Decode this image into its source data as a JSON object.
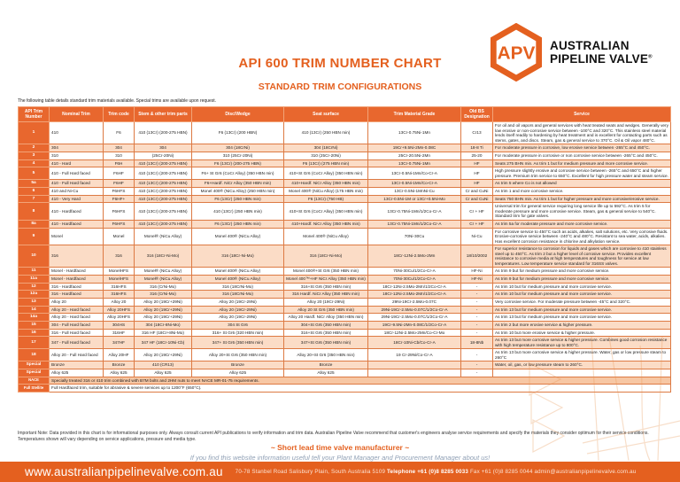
{
  "colors": {
    "accent": "#e4601f",
    "header_orange": "#e8672e",
    "row_alt": "#fbdcc6",
    "nace_bg": "#f7c7a4"
  },
  "logo": {
    "abbr": "APV",
    "line1": "AUSTRALIAN",
    "line2": "PIPELINE VALVE",
    "registered": "®"
  },
  "title": "API 600 TRIM NUMBER CHART",
  "subtitle": "STANDARD TRIM CONFIGURATIONS",
  "intro_note": "The following table details standard trim materials available. Special trims are available upon request.",
  "table": {
    "headers": [
      "API Trim Number",
      "Nominal Trim",
      "Trim code",
      "Stem & other trim parts",
      "Disc/Wedge",
      "Seat surface",
      "Trim Material Grade",
      "Old BS Designation",
      "Service"
    ],
    "rows": [
      [
        "1",
        "410",
        "F6",
        "410 (13Cr) (200-275 HBN)",
        "F6 (13Cr) (200 HBN)",
        "410 (13Cr) (250 HBN min)",
        "13Cr-0.75Ni-1Mn",
        "Cr13",
        "For oil and oil vapors and general services with heat treated seats and wedges. Generally very low erosive or non-corrosive service between -100°C and 320°C. This stainless steel material lends itself readily to hardening by heat treatment and is excellent for contacting parts such as stems, gates, and discs. Steam, gas & general service to 370°C. Oil & Oil vapor 480°C."
      ],
      [
        "2",
        "304",
        "304",
        "304",
        "304 (18CrNi)",
        "304 (18CrNi)",
        "19Cr+9.5Ni-2Mn-0.08C",
        "18-8 Ti",
        "For moderate pressure in corrosive, low erosive service between -265°C and 450°C."
      ],
      [
        "3",
        "310",
        "310",
        "(25Cr-20Ni)",
        "310 (25Cr-20Ni)",
        "310 (25Cr-20Ni)",
        "25Cr-20.5Ni-2Mn",
        "25-20",
        "For moderate pressure in corrosive or non corrosive service between -265°C and 450°C."
      ],
      [
        "4",
        "410 - Hard",
        "F6H",
        "410 (13Cr) (200-275 HBN)",
        "F6 (13Cr) (200-275 HBN)",
        "F6 (13Cr) (275 HBN min)",
        "13Cr-0.75Ni-1Mn",
        "HF",
        "Seats 275 BHN min. As trim 1 but for medium pressure and more corrosive service."
      ],
      [
        "5",
        "410 - Full Hard faced",
        "F6HF",
        "410 (13Cr) (200-275 HBN)",
        "F6+ St Gr6 (CoCr Alloy) (350 HBN min)",
        "410+St Gr6 (CoCr Alloy) (350 HBN min)",
        "13Cr-0.5Ni-1Mn/Co-Cr-A",
        "HF",
        "High pressure slightly erosive and corrosive service between -265°C and 650°C and higher pressure. Premium trim service to 650°C. Excellent for high pressure water and steam service."
      ],
      [
        "5a",
        "410 - Full Hard faced",
        "F6HF",
        "410 (13Cr) (200-275 HBN)",
        "F6+Hardf. NiCr Alloy (350 HBN min)",
        "410+Hardf. NiCr Alloy (350 HBN min)",
        "13Cr-0.5Ni-1Mn/Co-Cr-A",
        "HF",
        "As trim 5 where Co is not allowed"
      ],
      [
        "6",
        "410 and Ni-Cu",
        "F6HFS",
        "410 (13Cr) (200-275 HBN)",
        "Monel 400® (NiCu Alloy) (250 HBN min)",
        "Monel 400® (NiCu Alloy) (175 HBN min)",
        "13Cr-0.5Ni-1MnNi-Cu",
        "Cr and CuNi",
        "As trim 1 and more corrosive service."
      ],
      [
        "7",
        "410 - Very Hard",
        "F6HF+",
        "410 (13Cr) (200-275 HBN)",
        "F6 (13Cr) (250 HBN min)",
        "F6 (13Cr) (750 HB)",
        "13Cr-0.5Ni-1M or 13Cr+0.5Ni-Mo",
        "Cr and CuNi",
        "Seats 750 BHN min. As trim 1 but for higher pressure and more corrosive/erosive service."
      ],
      [
        "8",
        "410 - Hardfaced",
        "F6HFS",
        "410 (13Cr) (200-275 HBN)",
        "410 (13Cr) (250 HBN min)",
        "410+St Gr6 (CoCr Alloy) (350 HBN min)",
        "13Cr-0.75Ni-1Mn/1/2Co-Cr-A",
        "Cr + HF",
        "Universal trim for general service requiring long service life up to 592°C. As trim 5 for moderate pressure and more corrosive service. Steam, gas & general service to 540°C. Standard trim for gate valves."
      ],
      [
        "8a",
        "410 - Hardfaced",
        "F6HFS",
        "410 (13Cr) (200-275 HBN)",
        "F6 (13Cr) (250 HBN min)",
        "410+Hardf. NiCr Alloy (350 HBN min)",
        "13Cr-0.75Ni-1Mn/1/2Co-Cr-A",
        "Cr + HF",
        "As trim 5a for moderate pressure and more corrosive service."
      ],
      [
        "9",
        "Monel",
        "Monel",
        "Monel® (NiCu Alloy)",
        "Monel 400® (NiCu Alloy)",
        "Monel 400® (NiCu Alloy)",
        "70Ni-30Cu",
        "Ni-Cu",
        "For corrosive service to 450°C such as acids, alkalies, salt solutions, etc. Very corrosive fluids. Erosive-corrosive service between -240°C and 480°C. Resistant to sea water, acids, alkalies. Has excellent corrosion resistance in chlorine and alkylation service."
      ],
      [
        "10",
        "316",
        "316",
        "316 (18Cr-Ni-Mo)",
        "316 (18Cr-Ni-Mo)",
        "316 (18Cr-Ni-Mo)",
        "18Cr-12Ni-2.5Mo-2Mn",
        "18/10/2002",
        "For superior resistance to corrosion for liquids and gases which are corrosive to 410 stainless steel up to 450°C. As trim 2 but a higher level of corrosive service. Provides excellent resistance to corrosive media at high temperatures and toughness for service at low temperatures. Low temperature service standard for 316SS valves."
      ],
      [
        "11",
        "Monel - Hardfaced",
        "MonelHFS",
        "Monel® (NiCu Alloy)",
        "Monel 400® (NiCu Alloy)",
        "Monel 400®+St Gr6 (350 HBN min)",
        "70Ni-30Cu/1/2Co-Cr-A",
        "HF-Ni",
        "As trim 9 but for medium pressure and more corrosive service."
      ],
      [
        "11a",
        "Monel - Hardfaced",
        "MonelHFS",
        "Monel® (NiCu Alloy)",
        "Monel 400® (NiCu Alloy)",
        "Monel 400™+HF NiCr Alloy (350 HBN min)",
        "70Ni-30Cu/1/2Co-Cr-A",
        "HF-Ni",
        "As trim 9 but for medium pressure and more corrosive service."
      ],
      [
        "12",
        "316 - Hardfaced",
        "316HFS",
        "316 (CrNi-Mo)",
        "316 (18CrNi-Mo)",
        "316+St Gr6 (350 HBN min)",
        "18Cr-12Ni-2.5Mo-2Mn/1/2Co-Cr-A",
        "-",
        "As trim 10 but for medium pressure and more corrosive service."
      ],
      [
        "12a",
        "316 - Hardfaced",
        "316HFS",
        "316 (CrNi-Mo)",
        "316 (18CrNi-Mo)",
        "316 Hardf. NiCr Alloy (350 HBN min)",
        "18Cr-12Ni-2.5Mo-2Mn/1/2Co-Cr-A",
        "-",
        "As trim 10 but for medium pressure and more corrosive service."
      ],
      [
        "13",
        "Alloy 20",
        "Alloy 20",
        "Alloy 20 (19Cr+29Ni)",
        "Alloy 20 (19Cr-29Ni)",
        "Alloy 20 (19Cr-29Ni)",
        "29Ni-19Cr-2.5Mo-0.07C",
        "-",
        "Very corrosive service. For moderate pressure between -45°C and 320°C."
      ],
      [
        "14",
        "Alloy 20 - Hard faced",
        "Alloy 20HFS",
        "Alloy 20 (19Cr+29Ni)",
        "Alloy 20 (19Cr-29Ni)",
        "Alloy 20 St Gr6 (350 HBN min)",
        "29Ni-19Cr-2.5Mo-0.07C/1/2Co-Cr-A",
        "-",
        "As trim 13 but for medium pressure and more corrosive service."
      ],
      [
        "14a",
        "Alloy 20 - Hard faced",
        "Alloy 20HFS",
        "Alloy 20 (19Cr+29Ni)",
        "Alloy 20 (19Cr-29Ni)",
        "Alloy 20 Hardf. NiCr Alloy (350 HBN min)",
        "29Ni-19Cr-2.5Mo-0.07C/1/2Co-Cr-A",
        "-",
        "As trim 13 but for medium pressure and more corrosive service."
      ],
      [
        "15",
        "304 - Full Hard faced",
        "304HS",
        "304 (18Cr-8Ni-Mo)",
        "304 St Gr6",
        "304+St Gr6 (350 HBN min)",
        "19Cr-9.5Ni-2Mn-0.08C/1/2Co-Cr-A",
        "-",
        "As trim 2 but more erosive service & higher pressure."
      ],
      [
        "16",
        "316 - Full Hard faced",
        "316HF",
        "316 HF (18Cr+8Ni-Mo)",
        "316+ St Gr6 (320 HBN min)",
        "316+St Gr6 (350 HBN min)",
        "18Cr-12Ni-2.5Mo-2Mn/Co-Cr-Mo",
        "-",
        "As trim 10 but more erosive service & higher pressure."
      ],
      [
        "17",
        "347 - Full Hard faced",
        "347HF",
        "347 HF (18Cr-10Ni-Cb)",
        "347+ St Gr6 (350 HBN min)",
        "347+St Gr6 (350 HBN min)",
        "18Cr-10Ni-Cb/Co-Cr-A",
        "18-8Nb",
        "As trim 13 but more corrosive service & higher pressure. Combines good corrosion resistance with high temperature resistance up to 800°C."
      ],
      [
        "18",
        "Alloy 20 - Full Hard faced",
        "Alloy 20HF",
        "Alloy 20 (19Cr+29Ni)",
        "Alloy 20+St Gr6 (350 HBN min)",
        "Alloy 20+St Gr6 (350 HBN min)",
        "19 Cr-29Ni/Co-Cr-A",
        "-",
        "As trim 13 but more corrosive service & higher pressure. Water, gas or low pressure steam to 260°C"
      ],
      [
        "Special",
        "Bronze",
        "Bronze",
        "410 (CR13)",
        "Bronze",
        "Bronze",
        "",
        "-",
        "Water, oil, gas, or low pressure steam to 260°C."
      ],
      [
        "Special",
        "Alloy 625",
        "Alloy 625",
        "Alloy 625",
        "Alloy 625",
        "Alloy 625",
        "",
        "-",
        ""
      ]
    ],
    "span_rows": [
      {
        "label": "NACE",
        "text": "Specially treated 316 or 410 trim combined with B7M bolts and 2HM nuts to meet NACE MR-01-75 requirements."
      },
      {
        "label": "Full Stellite",
        "text": "Full Hardfaced trim, suitable for abrasive & severe services up to 1200°F (650°C)."
      }
    ]
  },
  "important_note": "Important Note: Data provided in this chart is for informational purposes only. Always consult current API publications to verify information and trim data. Australian Pipeline Valve recommend that customer's engineers analyse service requirements and specify the materials they consider optimum for their service conditions. Temperatures shown will vary depending on service applications, pressure and media type.",
  "tagline": "~ Short lead time valve manufacturer ~",
  "website_note": "If you find this website information useful tell your Plant Manager and Procurement Manager about us!",
  "footer": {
    "url": "www.australianpipelinevalve.com.au",
    "address": "70-78 Stanbel Road Salisbury Plain, South Australia 5109",
    "phone_label": "Telephone",
    "phone": "+61 (0)8 8285 0033",
    "fax_label": "Fax",
    "fax": "+61 (0)8 8285 0044",
    "email": "admin@australianpipelinevalve.com.au"
  }
}
